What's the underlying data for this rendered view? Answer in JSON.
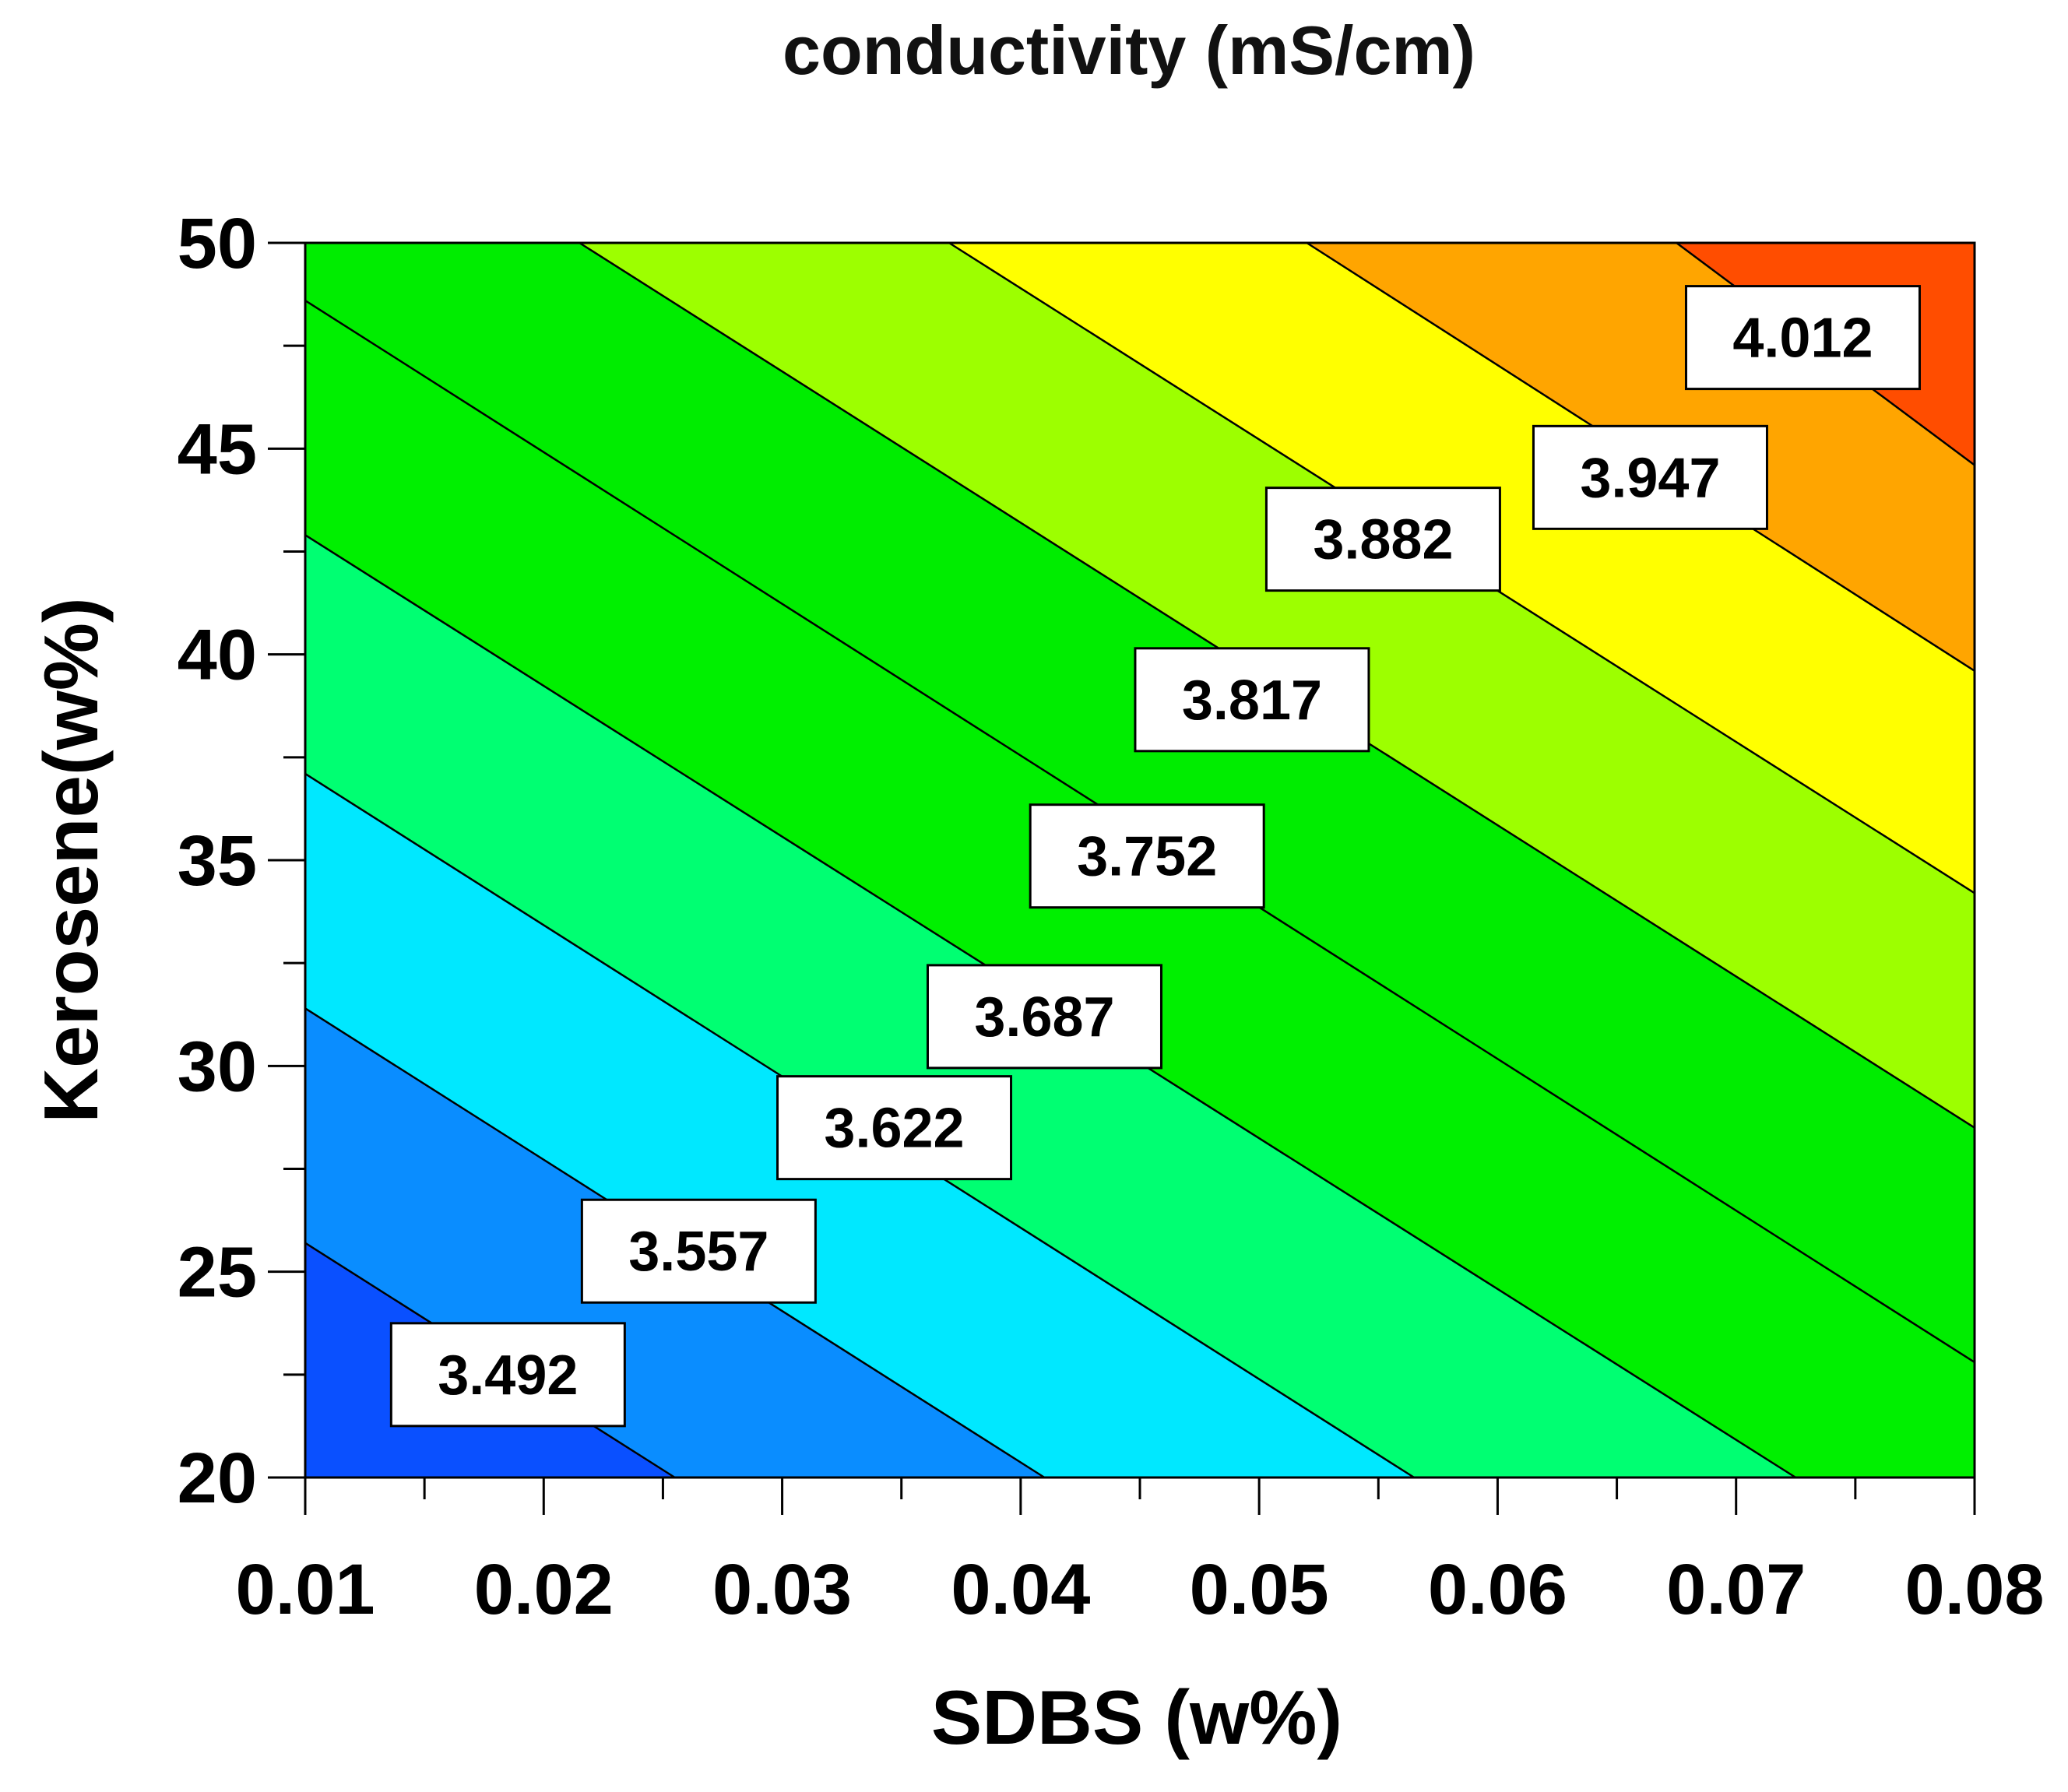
{
  "chart_data": {
    "type": "contour",
    "title": "conductivity (mS/cm)",
    "xlabel": "SDBS (w%)",
    "ylabel": "Kerosene(w%)",
    "xlim": [
      0.01,
      0.08
    ],
    "ylim": [
      20,
      50
    ],
    "x_ticks": [
      "0.01",
      "0.02",
      "0.03",
      "0.04",
      "0.05",
      "0.06",
      "0.07",
      "0.08"
    ],
    "y_ticks": [
      "20",
      "25",
      "30",
      "35",
      "40",
      "45",
      "50"
    ],
    "levels": [
      {
        "value": "3.492",
        "label_at": [
          0.0185,
          22.5
        ],
        "line": [
          [
            0.01,
            25.7
          ],
          [
            0.0255,
            20.0
          ]
        ]
      },
      {
        "value": "3.557",
        "label_at": [
          0.0265,
          25.5
        ],
        "line": [
          [
            0.01,
            31.4
          ],
          [
            0.041,
            20.0
          ]
        ]
      },
      {
        "value": "3.622",
        "label_at": [
          0.0347,
          28.5
        ],
        "line": [
          [
            0.01,
            37.1
          ],
          [
            0.0565,
            20.0
          ]
        ]
      },
      {
        "value": "3.687",
        "label_at": [
          0.041,
          31.2
        ],
        "line": [
          [
            0.01,
            42.9
          ],
          [
            0.0725,
            20.0
          ]
        ]
      },
      {
        "value": "3.752",
        "label_at": [
          0.0453,
          35.1
        ],
        "line": [
          [
            0.01,
            48.6
          ],
          [
            0.08,
            22.8
          ]
        ]
      },
      {
        "value": "3.817",
        "label_at": [
          0.0497,
          38.9
        ],
        "line": [
          [
            0.0215,
            50.0
          ],
          [
            0.08,
            28.5
          ]
        ]
      },
      {
        "value": "3.882",
        "label_at": [
          0.0552,
          42.8
        ],
        "line": [
          [
            0.037,
            50.0
          ],
          [
            0.08,
            34.2
          ]
        ]
      },
      {
        "value": "3.947",
        "label_at": [
          0.0664,
          44.3
        ],
        "line": [
          [
            0.052,
            50.0
          ],
          [
            0.08,
            39.6
          ]
        ]
      },
      {
        "value": "4.012",
        "label_at": [
          0.0728,
          47.7
        ],
        "line": [
          [
            0.0675,
            50.0
          ],
          [
            0.08,
            44.6
          ]
        ]
      }
    ],
    "band_colors": [
      "#0a50ff",
      "#0a8dff",
      "#00e8ff",
      "#00ff72",
      "#00f000",
      "#00ed00",
      "#9dff00",
      "#ffff00",
      "#ffa500",
      "#ff4d00"
    ]
  }
}
